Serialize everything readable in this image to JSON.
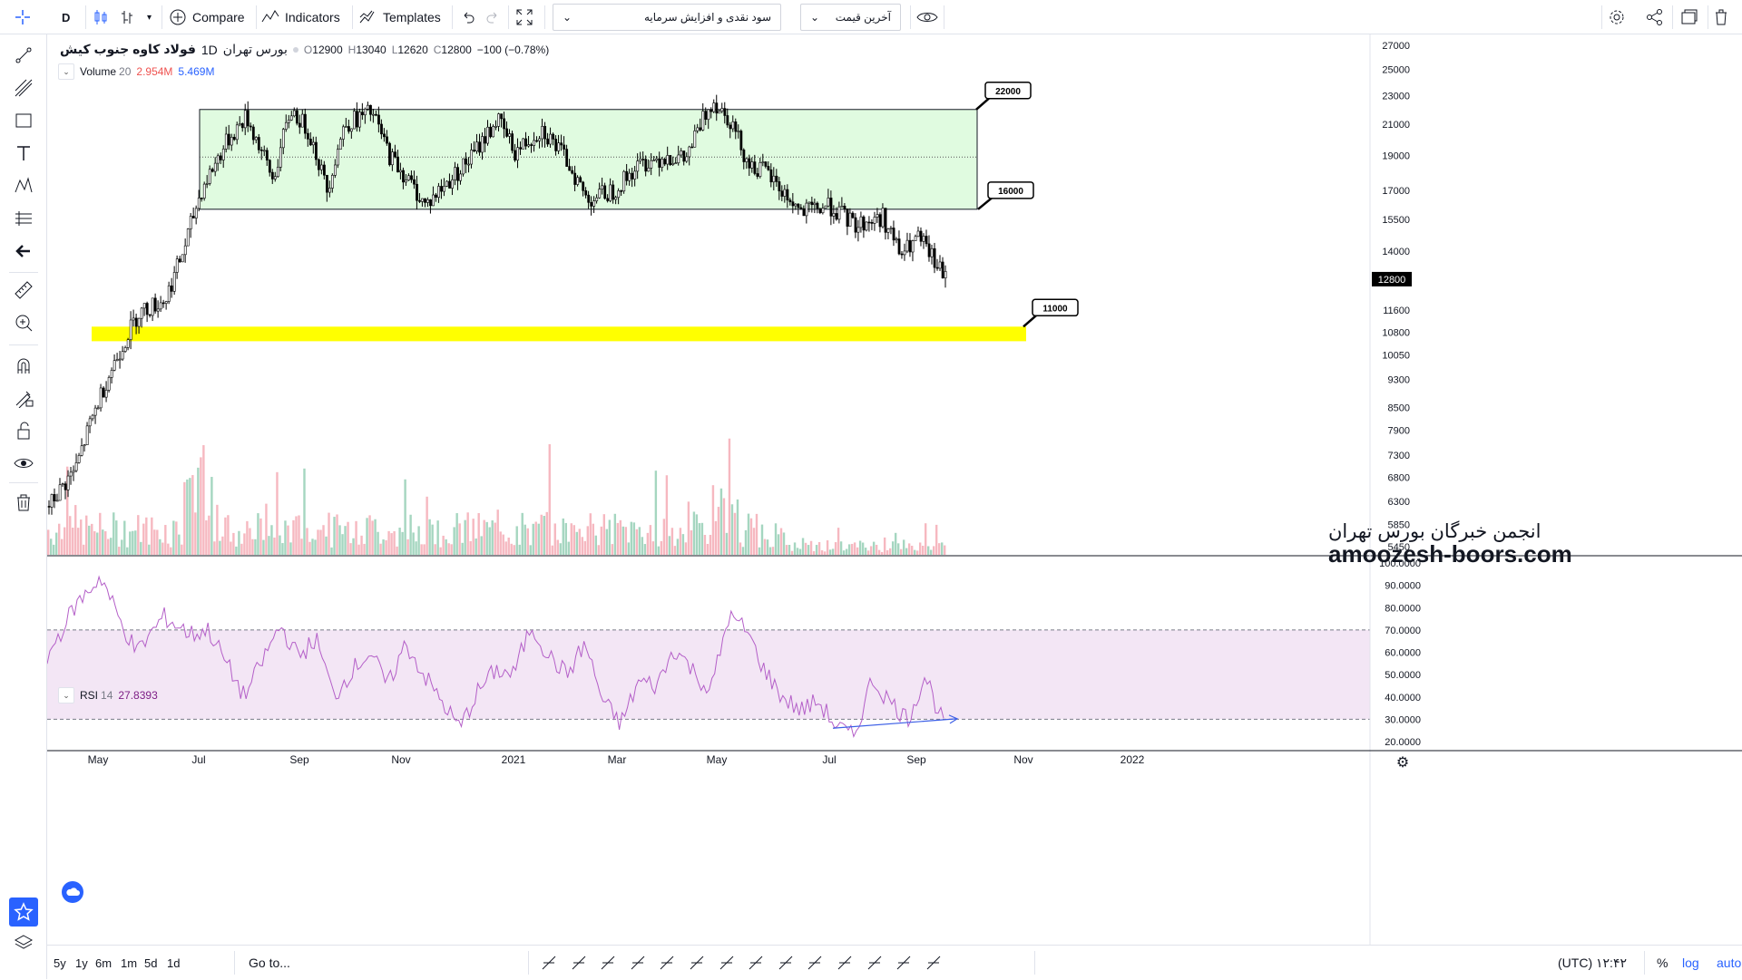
{
  "toolbar": {
    "interval": "D",
    "compare_label": "Compare",
    "indicators_label": "Indicators",
    "templates_label": "Templates",
    "dropdown_dividend": "سود نقدی و افزایش سرمایه",
    "dropdown_price": "آخرین قیمت"
  },
  "header": {
    "symbol": "فولاد کاوه جنوب کیش",
    "interval": "1D",
    "exchange": "بورس تهران",
    "open_label": "O",
    "open": "12900",
    "high_label": "H",
    "high": "13040",
    "low_label": "L",
    "low": "12620",
    "close_label": "C",
    "close": "12800",
    "change": "−100 (−0.78%)"
  },
  "volume_legend": {
    "name": "Volume",
    "length": "20",
    "value1": "2.954M",
    "value2": "5.469M"
  },
  "rsi_legend": {
    "name": "RSI",
    "length": "14",
    "value": "27.8393"
  },
  "watermark": {
    "line1": "انجمن خبرگان بورس تهران",
    "line2": "amoozesh-boors.com"
  },
  "bottombar": {
    "ranges": [
      "5y",
      "1y",
      "6m",
      "1m",
      "5d",
      "1d"
    ],
    "goto": "Go to...",
    "time": "۱۲:۴۲ (UTC)",
    "pct": "%",
    "log": "log",
    "auto": "auto"
  },
  "colors": {
    "up_volume": "#a5d6c0",
    "down_volume": "#f6b8c0",
    "box_fill": "#e0fbe0",
    "support_band": "#ffff00",
    "rsi_line": "#b45fc8",
    "rsi_band": "#f3e6f5",
    "divergence": "#3c5fe6",
    "price_label_bg": "#000000",
    "accent": "#2962ff"
  },
  "chart_data": {
    "type": "candlestick",
    "price_axis": {
      "ticks": [
        27000,
        25000,
        23000,
        21000,
        19000,
        17000,
        15500,
        14000,
        12800,
        11600,
        10800,
        10050,
        9300,
        8500,
        7900,
        7300,
        6800,
        6300,
        5850,
        5450
      ],
      "scale": "log",
      "last_price": 12800
    },
    "x_axis": {
      "ticks": [
        "May",
        "Jul",
        "Sep",
        "Nov",
        "2021",
        "Mar",
        "May",
        "Jul",
        "Sep",
        "Nov",
        "2022"
      ]
    },
    "price_path": [
      {
        "t": 0,
        "p": 6200
      },
      {
        "t": 0.03,
        "p": 7000
      },
      {
        "t": 0.06,
        "p": 9000
      },
      {
        "t": 0.1,
        "p": 11500
      },
      {
        "t": 0.13,
        "p": 12000
      },
      {
        "t": 0.15,
        "p": 14000
      },
      {
        "t": 0.17,
        "p": 17000
      },
      {
        "t": 0.2,
        "p": 20000
      },
      {
        "t": 0.22,
        "p": 21500
      },
      {
        "t": 0.25,
        "p": 17500
      },
      {
        "t": 0.27,
        "p": 22000
      },
      {
        "t": 0.29,
        "p": 20500
      },
      {
        "t": 0.31,
        "p": 17000
      },
      {
        "t": 0.33,
        "p": 21000
      },
      {
        "t": 0.36,
        "p": 21800
      },
      {
        "t": 0.38,
        "p": 19000
      },
      {
        "t": 0.42,
        "p": 16200
      },
      {
        "t": 0.44,
        "p": 17200
      },
      {
        "t": 0.47,
        "p": 18800
      },
      {
        "t": 0.5,
        "p": 21300
      },
      {
        "t": 0.52,
        "p": 19200
      },
      {
        "t": 0.55,
        "p": 20700
      },
      {
        "t": 0.58,
        "p": 18500
      },
      {
        "t": 0.6,
        "p": 16500
      },
      {
        "t": 0.63,
        "p": 17000
      },
      {
        "t": 0.66,
        "p": 18500
      },
      {
        "t": 0.69,
        "p": 19000
      },
      {
        "t": 0.71,
        "p": 18700
      },
      {
        "t": 0.74,
        "p": 22700
      },
      {
        "t": 0.76,
        "p": 21300
      },
      {
        "t": 0.78,
        "p": 18500
      },
      {
        "t": 0.8,
        "p": 18000
      },
      {
        "t": 0.82,
        "p": 16800
      },
      {
        "t": 0.84,
        "p": 15800
      },
      {
        "t": 0.87,
        "p": 16200
      },
      {
        "t": 0.9,
        "p": 15200
      },
      {
        "t": 0.93,
        "p": 15600
      },
      {
        "t": 0.95,
        "p": 13800
      },
      {
        "t": 0.97,
        "p": 14600
      },
      {
        "t": 1.0,
        "p": 12800
      }
    ],
    "levels": [
      {
        "label": "22000",
        "value": 22000
      },
      {
        "label": "16000",
        "value": 16000
      },
      {
        "label": "11000",
        "value": 11000
      }
    ],
    "range_box": {
      "top": 22000,
      "bottom": 16000,
      "mid": 18900
    },
    "support_zone": {
      "top": 11000,
      "bottom": 10500
    },
    "rsi": {
      "ticks": [
        "100.0000",
        "90.0000",
        "80.0000",
        "70.0000",
        "60.0000",
        "50.0000",
        "40.0000",
        "30.0000",
        "20.0000"
      ],
      "overbought": 70,
      "oversold": 30,
      "last": 27.8393,
      "path": [
        {
          "t": 0,
          "p": 58
        },
        {
          "t": 0.03,
          "p": 80
        },
        {
          "t": 0.06,
          "p": 94
        },
        {
          "t": 0.08,
          "p": 75
        },
        {
          "t": 0.1,
          "p": 60
        },
        {
          "t": 0.13,
          "p": 76
        },
        {
          "t": 0.16,
          "p": 68
        },
        {
          "t": 0.18,
          "p": 70
        },
        {
          "t": 0.2,
          "p": 55
        },
        {
          "t": 0.22,
          "p": 40
        },
        {
          "t": 0.24,
          "p": 56
        },
        {
          "t": 0.26,
          "p": 72
        },
        {
          "t": 0.28,
          "p": 58
        },
        {
          "t": 0.3,
          "p": 66
        },
        {
          "t": 0.32,
          "p": 40
        },
        {
          "t": 0.34,
          "p": 52
        },
        {
          "t": 0.36,
          "p": 60
        },
        {
          "t": 0.38,
          "p": 45
        },
        {
          "t": 0.4,
          "p": 64
        },
        {
          "t": 0.42,
          "p": 50
        },
        {
          "t": 0.44,
          "p": 38
        },
        {
          "t": 0.46,
          "p": 26
        },
        {
          "t": 0.48,
          "p": 42
        },
        {
          "t": 0.5,
          "p": 52
        },
        {
          "t": 0.52,
          "p": 50
        },
        {
          "t": 0.54,
          "p": 72
        },
        {
          "t": 0.56,
          "p": 58
        },
        {
          "t": 0.58,
          "p": 50
        },
        {
          "t": 0.6,
          "p": 64
        },
        {
          "t": 0.62,
          "p": 38
        },
        {
          "t": 0.64,
          "p": 28
        },
        {
          "t": 0.66,
          "p": 47
        },
        {
          "t": 0.68,
          "p": 45
        },
        {
          "t": 0.7,
          "p": 62
        },
        {
          "t": 0.72,
          "p": 52
        },
        {
          "t": 0.74,
          "p": 42
        },
        {
          "t": 0.76,
          "p": 76
        },
        {
          "t": 0.78,
          "p": 70
        },
        {
          "t": 0.8,
          "p": 52
        },
        {
          "t": 0.82,
          "p": 40
        },
        {
          "t": 0.84,
          "p": 34
        },
        {
          "t": 0.86,
          "p": 38
        },
        {
          "t": 0.88,
          "p": 27
        },
        {
          "t": 0.9,
          "p": 22
        },
        {
          "t": 0.92,
          "p": 48
        },
        {
          "t": 0.94,
          "p": 38
        },
        {
          "t": 0.96,
          "p": 30
        },
        {
          "t": 0.98,
          "p": 50
        },
        {
          "t": 0.99,
          "p": 38
        },
        {
          "t": 1.0,
          "p": 27.84
        }
      ]
    }
  }
}
